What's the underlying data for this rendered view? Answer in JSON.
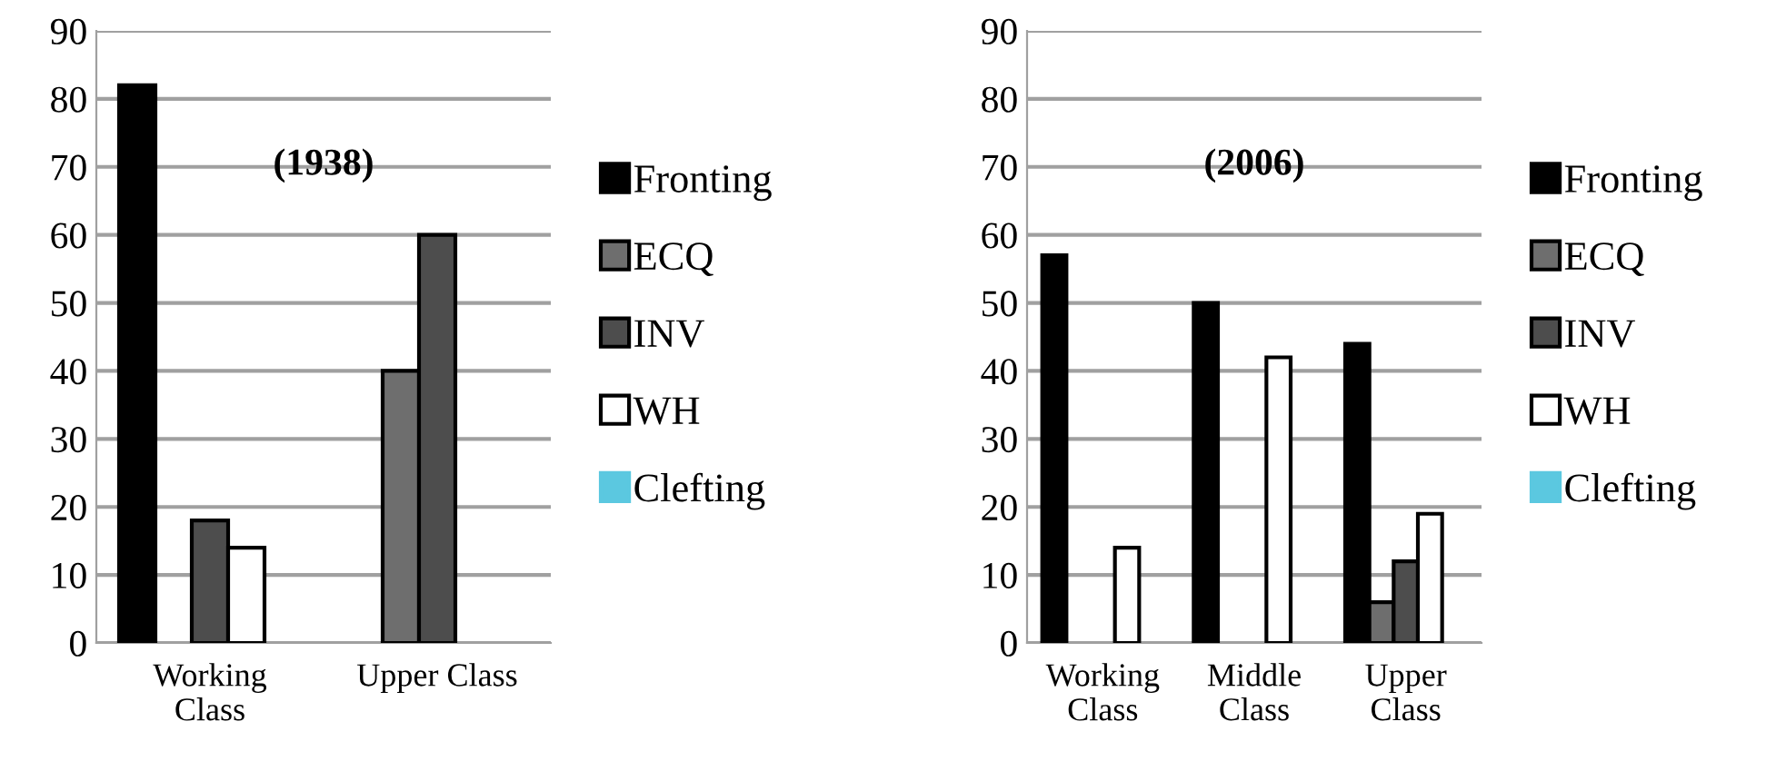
{
  "chart_data": [
    {
      "type": "bar",
      "title": "(1938)",
      "categories": [
        "Working\nClass",
        "Upper Class"
      ],
      "ylim": [
        0,
        90
      ],
      "yticks": [
        0,
        10,
        20,
        30,
        40,
        50,
        60,
        70,
        80,
        90
      ],
      "grid": "y",
      "legend": "right",
      "series": [
        {
          "name": "Fronting",
          "color": "#000000",
          "values": [
            82,
            0
          ]
        },
        {
          "name": "ECQ",
          "color": "#6e6e6e",
          "values": [
            0,
            40
          ]
        },
        {
          "name": "INV",
          "color": "#4d4d4d",
          "values": [
            18,
            60
          ]
        },
        {
          "name": "WH",
          "color": "#ffffff",
          "values": [
            14,
            0
          ]
        },
        {
          "name": "Clefting",
          "color": "#5bc8e0",
          "values": [
            0,
            0
          ]
        }
      ]
    },
    {
      "type": "bar",
      "title": "(2006)",
      "categories": [
        "Working\nClass",
        "Middle\nClass",
        "Upper\nClass"
      ],
      "ylim": [
        0,
        90
      ],
      "yticks": [
        0,
        10,
        20,
        30,
        40,
        50,
        60,
        70,
        80,
        90
      ],
      "grid": "y",
      "legend": "right",
      "series": [
        {
          "name": "Fronting",
          "color": "#000000",
          "values": [
            57,
            50,
            44
          ]
        },
        {
          "name": "ECQ",
          "color": "#6e6e6e",
          "values": [
            0,
            0,
            6
          ]
        },
        {
          "name": "INV",
          "color": "#4d4d4d",
          "values": [
            0,
            0,
            12
          ]
        },
        {
          "name": "WH",
          "color": "#ffffff",
          "values": [
            14,
            42,
            19
          ]
        },
        {
          "name": "Clefting",
          "color": "#5bc8e0",
          "values": [
            0,
            0,
            0
          ]
        }
      ]
    }
  ]
}
